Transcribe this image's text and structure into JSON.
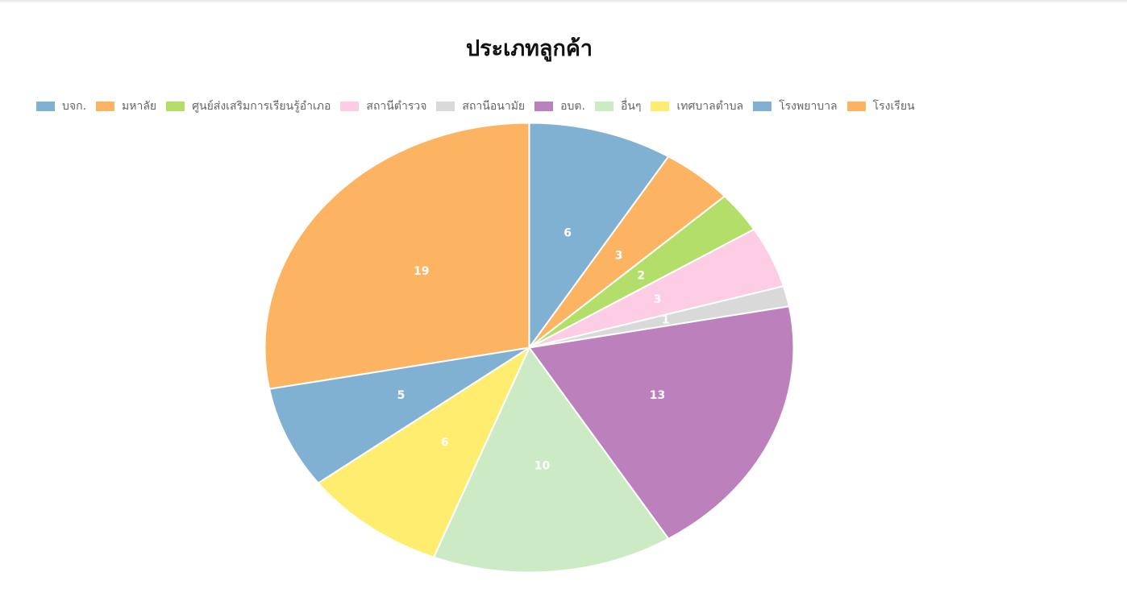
{
  "chart_data": {
    "type": "pie",
    "title": "ประเภทลูกค้า",
    "legend_position": "top-left",
    "slices": [
      {
        "label": "บจก.",
        "value": 6,
        "color": "#80b1d3"
      },
      {
        "label": "มหาลัย",
        "value": 3,
        "color": "#fdb462"
      },
      {
        "label": "ศูนย์ส่งเสริมการเรียนรู้อำเภอ",
        "value": 2,
        "color": "#b3de69"
      },
      {
        "label": "สถานีตำรวจ",
        "value": 3,
        "color": "#fccde5"
      },
      {
        "label": "สถานีอนามัย",
        "value": 1,
        "color": "#d9d9d9"
      },
      {
        "label": "อบต.",
        "value": 13,
        "color": "#bc80bd"
      },
      {
        "label": "อื่นๆ",
        "value": 10,
        "color": "#ccebc5"
      },
      {
        "label": "เทศบาลตำบล",
        "value": 6,
        "color": "#ffed6f"
      },
      {
        "label": "โรงพยาบาล",
        "value": 5,
        "color": "#80b1d3"
      },
      {
        "label": "โรงเรียน",
        "value": 19,
        "color": "#fdb462"
      }
    ]
  }
}
